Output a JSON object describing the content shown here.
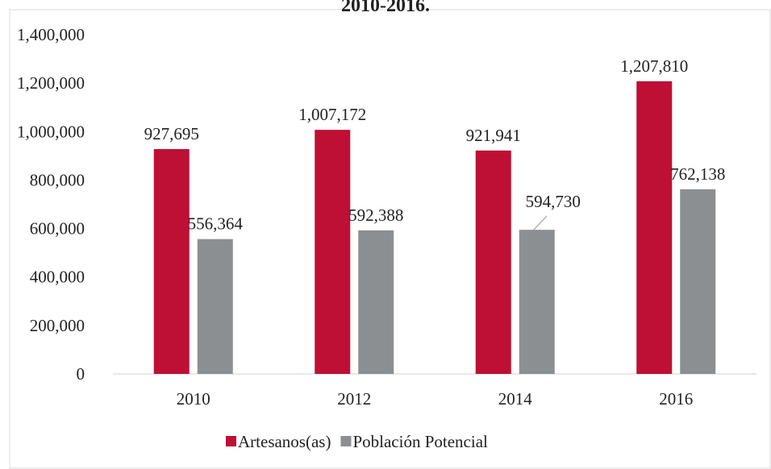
{
  "chart_data": {
    "type": "bar",
    "title": "2010-2016.",
    "categories": [
      "2010",
      "2012",
      "2014",
      "2016"
    ],
    "series": [
      {
        "name": "Artesanos(as)",
        "color": "#be0f34",
        "values": [
          927695,
          1007172,
          921941,
          1207810
        ],
        "value_labels": [
          "927,695",
          "1,007,172",
          "921,941",
          "1,207,810"
        ]
      },
      {
        "name": "Población Potencial",
        "color": "#8c8f91",
        "values": [
          556364,
          592388,
          594730,
          762138
        ],
        "value_labels": [
          "556,364",
          "592,388",
          "594,730",
          "762,138"
        ]
      }
    ],
    "ylim": [
      0,
      1400000
    ],
    "yticks": [
      0,
      {
        "value": 200000,
        "label": "200,000"
      },
      {
        "value": 400000,
        "label": "400,000"
      },
      {
        "value": 600000,
        "label": "600,000"
      },
      {
        "value": 800000,
        "label": "800,000"
      },
      {
        "value": 1000000,
        "label": "1,000,000"
      },
      {
        "value": 1200000,
        "label": "1,200,000"
      },
      {
        "value": 1400000,
        "label": "1,400,000"
      }
    ],
    "legend": "bottom"
  }
}
